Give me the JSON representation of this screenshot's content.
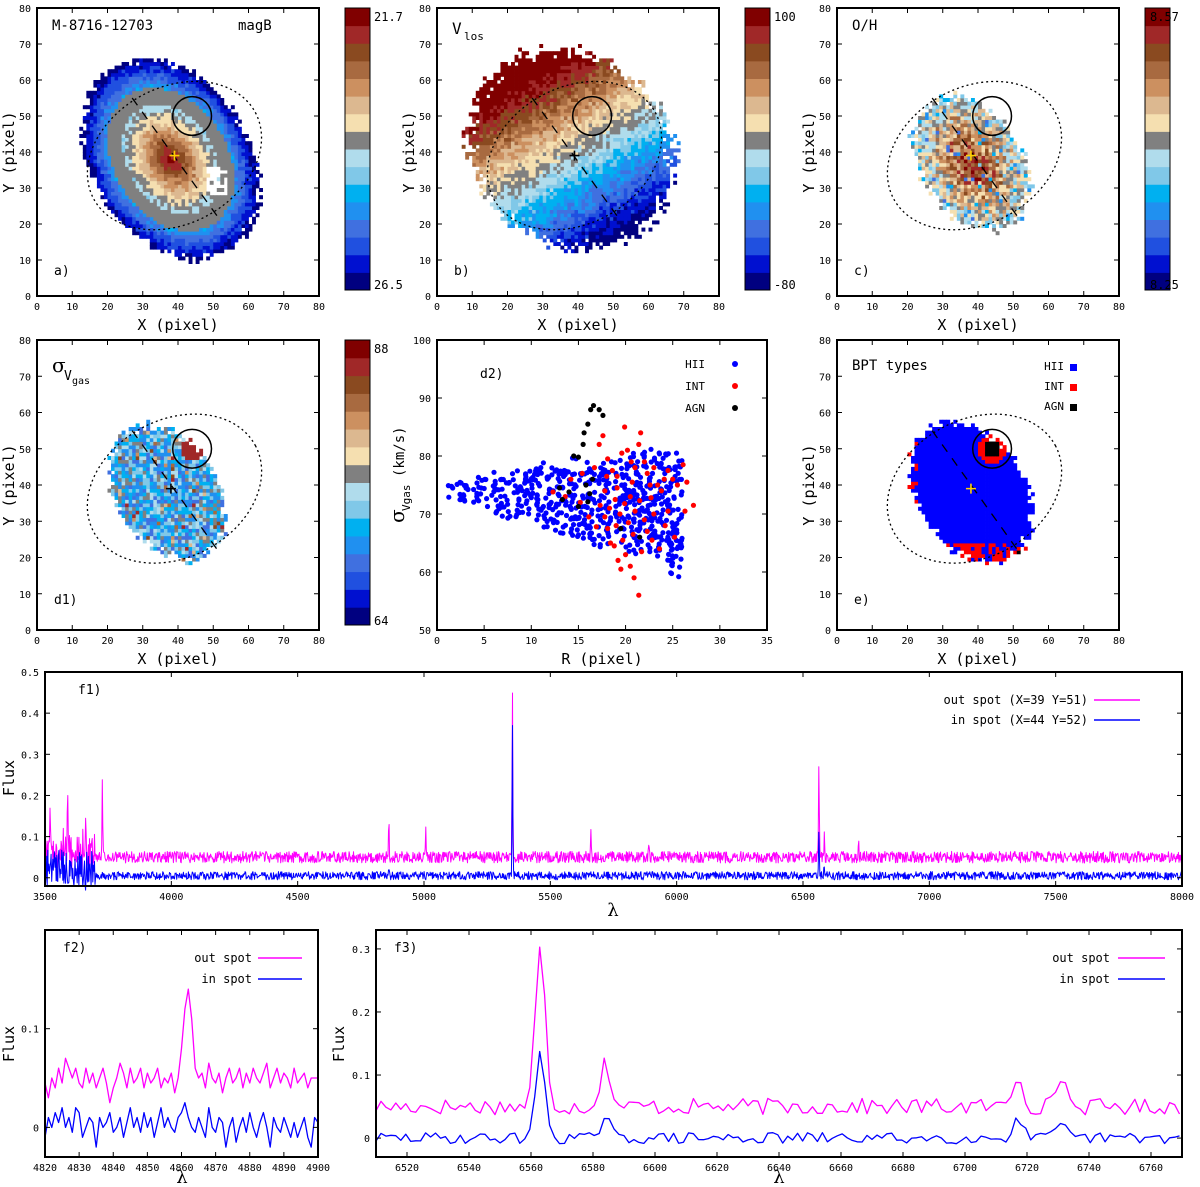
{
  "colors": {
    "palette": [
      "#000080",
      "#0010d0",
      "#2050e0",
      "#4070e0",
      "#2090f0",
      "#00b0f0",
      "#80c8e8",
      "#b0dcec",
      "#808080",
      "#f5dfb0",
      "#dcb890",
      "#cc9060",
      "#a86a40",
      "#8a4a20",
      "#a02828",
      "#800000"
    ],
    "hii": "#0000ff",
    "int": "#ff0000",
    "agn": "#000000",
    "out_spot": "#ff00ff",
    "in_spot": "#0000ff"
  },
  "maps": [
    {
      "id": "a",
      "title": "M-8716-12703",
      "subtitle": "magB",
      "tag": "a)",
      "cbar_top": "21.7",
      "cbar_bottom": "26.5",
      "xlabel": "X  (pixel)",
      "ylabel": "Y  (pixel)",
      "xticks": [
        "0",
        "10",
        "20",
        "30",
        "40",
        "50",
        "60",
        "70",
        "80"
      ],
      "yticks": [
        "0",
        "10",
        "20",
        "30",
        "40",
        "50",
        "60",
        "70",
        "80"
      ],
      "xlim": [
        0,
        80
      ],
      "ylim": [
        0,
        80
      ]
    },
    {
      "id": "b",
      "title": "V",
      "title_sub": "los",
      "tag": "b)",
      "cbar_top": "100",
      "cbar_bottom": "-80",
      "xlabel": "X  (pixel)",
      "ylabel": "Y  (pixel)",
      "xticks": [
        "0",
        "10",
        "20",
        "30",
        "40",
        "50",
        "60",
        "70",
        "80"
      ],
      "yticks": [
        "0",
        "10",
        "20",
        "30",
        "40",
        "50",
        "60",
        "70",
        "80"
      ],
      "xlim": [
        0,
        80
      ],
      "ylim": [
        0,
        80
      ]
    },
    {
      "id": "c",
      "title": "O/H",
      "tag": "c)",
      "cbar_top": "8.57",
      "cbar_bottom": "8.25",
      "xlabel": "X  (pixel)",
      "ylabel": "Y  (pixel)",
      "xticks": [
        "0",
        "10",
        "20",
        "30",
        "40",
        "50",
        "60",
        "70",
        "80"
      ],
      "yticks": [
        "0",
        "10",
        "20",
        "30",
        "40",
        "50",
        "60",
        "70",
        "80"
      ],
      "xlim": [
        0,
        80
      ],
      "ylim": [
        0,
        80
      ]
    },
    {
      "id": "d1",
      "title": "σ",
      "title_sub": "V",
      "title_subsub": "gas",
      "tag": "d1)",
      "cbar_top": "88",
      "cbar_bottom": "64",
      "xlabel": "X  (pixel)",
      "ylabel": "Y  (pixel)",
      "xticks": [
        "0",
        "10",
        "20",
        "30",
        "40",
        "50",
        "60",
        "70",
        "80"
      ],
      "yticks": [
        "0",
        "10",
        "20",
        "30",
        "40",
        "50",
        "60",
        "70",
        "80"
      ],
      "xlim": [
        0,
        80
      ],
      "ylim": [
        0,
        80
      ]
    },
    {
      "id": "e",
      "title": "BPT types",
      "tag": "e)",
      "xlabel": "X  (pixel)",
      "ylabel": "Y  (pixel)",
      "xticks": [
        "0",
        "10",
        "20",
        "30",
        "40",
        "50",
        "60",
        "70",
        "80"
      ],
      "yticks": [
        "0",
        "10",
        "20",
        "30",
        "40",
        "50",
        "60",
        "70",
        "80"
      ],
      "xlim": [
        0,
        80
      ],
      "ylim": [
        0,
        80
      ],
      "legend": [
        "HII",
        "INT",
        "AGN"
      ]
    }
  ],
  "chart_data": [
    {
      "id": "d2",
      "type": "scatter",
      "tag": "d2)",
      "xlabel": "R  (pixel)",
      "ylabel_sym": "σ",
      "ylabel_sub": "Vgas",
      "ylabel_unit": "(km/s)",
      "xlim": [
        0,
        35
      ],
      "ylim": [
        50,
        100
      ],
      "xticks": [
        "0",
        "5",
        "10",
        "15",
        "20",
        "25",
        "30",
        "35"
      ],
      "yticks": [
        "50",
        "60",
        "70",
        "80",
        "90",
        "100"
      ],
      "legend": [
        "HII",
        "INT",
        "AGN"
      ],
      "agn_points": [
        [
          14.5,
          80
        ],
        [
          15.0,
          79.8
        ],
        [
          15.5,
          82
        ],
        [
          15.6,
          84
        ],
        [
          16.0,
          85.5
        ],
        [
          16.3,
          88
        ],
        [
          16.6,
          88.7
        ],
        [
          17.2,
          88
        ],
        [
          17.6,
          87
        ],
        [
          15.8,
          75
        ],
        [
          16.2,
          73.5
        ],
        [
          16.5,
          76
        ],
        [
          14.0,
          73.8
        ],
        [
          13.3,
          72.5
        ],
        [
          13.0,
          74.5
        ],
        [
          21.5,
          66
        ],
        [
          19.5,
          67.5
        ],
        [
          15.0,
          71.3
        ],
        [
          16.0,
          72.1
        ]
      ],
      "int_points": [
        [
          12.3,
          73.8
        ],
        [
          13.6,
          73
        ],
        [
          14.2,
          76
        ],
        [
          15.2,
          72
        ],
        [
          16.1,
          69.5
        ],
        [
          16.7,
          78
        ],
        [
          17.2,
          82
        ],
        [
          17.6,
          83.5
        ],
        [
          18.1,
          79.5
        ],
        [
          18.6,
          77.5
        ],
        [
          19.1,
          76.5
        ],
        [
          19.6,
          80.5
        ],
        [
          19.9,
          85
        ],
        [
          20.2,
          81
        ],
        [
          20.6,
          79
        ],
        [
          21.0,
          78
        ],
        [
          21.4,
          82
        ],
        [
          21.6,
          84
        ],
        [
          22.0,
          79
        ],
        [
          22.3,
          77
        ],
        [
          22.6,
          75
        ],
        [
          23.0,
          78
        ],
        [
          23.4,
          75
        ],
        [
          23.8,
          74
        ],
        [
          24.1,
          76
        ],
        [
          24.5,
          77.5
        ],
        [
          25.0,
          76
        ],
        [
          25.5,
          75
        ],
        [
          26.1,
          78.5
        ],
        [
          26.5,
          75.5
        ],
        [
          27.2,
          71.5
        ],
        [
          26.3,
          70.5
        ],
        [
          25.2,
          66
        ],
        [
          24.2,
          68
        ],
        [
          23.6,
          64
        ],
        [
          22.8,
          65.5
        ],
        [
          22.3,
          67
        ],
        [
          21.4,
          56
        ],
        [
          20.9,
          59
        ],
        [
          20.5,
          61
        ],
        [
          20.0,
          63
        ],
        [
          19.5,
          60.5
        ],
        [
          19.2,
          62
        ],
        [
          18.8,
          64.5
        ],
        [
          18.4,
          65
        ],
        [
          18.1,
          67.5
        ],
        [
          17.8,
          69.5
        ],
        [
          18.3,
          71
        ],
        [
          18.9,
          72.5
        ],
        [
          19.4,
          70
        ],
        [
          19.9,
          71.8
        ],
        [
          20.5,
          73
        ],
        [
          21.0,
          70.5
        ],
        [
          21.5,
          72.3
        ],
        [
          22.0,
          69
        ],
        [
          16.9,
          67.8
        ],
        [
          17.3,
          71.5
        ],
        [
          17.8,
          74
        ],
        [
          19.1,
          74.5
        ],
        [
          20.7,
          75.5
        ],
        [
          23.0,
          70
        ],
        [
          24.5,
          70.5
        ],
        [
          20.8,
          66.5
        ],
        [
          21.7,
          63.5
        ],
        [
          19.7,
          65.5
        ],
        [
          18.0,
          76.5
        ],
        [
          15.4,
          77
        ],
        [
          20.3,
          68.5
        ],
        [
          22.7,
          72.8
        ],
        [
          19.0,
          68
        ]
      ]
    },
    {
      "id": "f1",
      "type": "line",
      "tag": "f1)",
      "xlabel": "λ",
      "ylabel": "Flux",
      "xlim": [
        3500,
        8000
      ],
      "ylim": [
        -0.02,
        0.5
      ],
      "xticks": [
        "3500",
        "4000",
        "4500",
        "5000",
        "5500",
        "6000",
        "6500",
        "7000",
        "7500",
        "8000"
      ],
      "yticks": [
        "0",
        "0.1",
        "0.2",
        "0.3",
        "0.4",
        "0.5"
      ],
      "series": [
        {
          "name": "out spot (X=39 Y=51)",
          "baseline": 0.05,
          "noise": 0.014
        },
        {
          "name": "in spot (X=44 Y=52)",
          "baseline": 0.005,
          "noise": 0.01
        }
      ],
      "out_peaks": [
        [
          3727,
          0.25
        ],
        [
          3660,
          0.12
        ],
        [
          3590,
          0.19
        ],
        [
          3520,
          0.18
        ],
        [
          4861,
          0.135
        ],
        [
          5007,
          0.12
        ],
        [
          5350,
          0.46
        ],
        [
          5660,
          0.12
        ],
        [
          5890,
          0.1
        ],
        [
          6563,
          0.3
        ],
        [
          6584,
          0.1
        ],
        [
          6720,
          0.1
        ]
      ],
      "in_peaks": [
        [
          5350,
          0.37
        ],
        [
          6563,
          0.13
        ],
        [
          4861,
          0.03
        ],
        [
          6584,
          0.03
        ]
      ]
    },
    {
      "id": "f2",
      "type": "line",
      "tag": "f2)",
      "xlabel": "λ",
      "ylabel": "Flux",
      "xlim": [
        4820,
        4900
      ],
      "ylim": [
        -0.03,
        0.2
      ],
      "xticks": [
        "4820",
        "4830",
        "4840",
        "4850",
        "4860",
        "4870",
        "4880",
        "4890",
        "4900"
      ],
      "yticks": [
        "0",
        "0.1"
      ],
      "series": [
        {
          "name": "out spot",
          "x": [
            4820,
            4821,
            4822,
            4823,
            4824,
            4825,
            4826,
            4827,
            4828,
            4829,
            4830,
            4831,
            4832,
            4833,
            4834,
            4835,
            4836,
            4837,
            4838,
            4839,
            4840,
            4841,
            4842,
            4843,
            4844,
            4845,
            4846,
            4847,
            4848,
            4849,
            4850,
            4851,
            4852,
            4853,
            4854,
            4855,
            4856,
            4857,
            4858,
            4859,
            4860,
            4861,
            4862,
            4863,
            4864,
            4865,
            4866,
            4867,
            4868,
            4869,
            4870,
            4871,
            4872,
            4873,
            4874,
            4875,
            4876,
            4877,
            4878,
            4879,
            4880,
            4881,
            4882,
            4883,
            4884,
            4885,
            4886,
            4887,
            4888,
            4889,
            4890,
            4891,
            4892,
            4893,
            4894,
            4895,
            4896,
            4897,
            4898,
            4899,
            4900
          ],
          "y": [
            0.045,
            0.03,
            0.05,
            0.04,
            0.06,
            0.045,
            0.07,
            0.06,
            0.05,
            0.06,
            0.045,
            0.04,
            0.06,
            0.045,
            0.055,
            0.04,
            0.05,
            0.06,
            0.045,
            0.025,
            0.04,
            0.05,
            0.065,
            0.055,
            0.04,
            0.06,
            0.045,
            0.05,
            0.06,
            0.04,
            0.055,
            0.045,
            0.05,
            0.06,
            0.04,
            0.05,
            0.045,
            0.055,
            0.035,
            0.05,
            0.08,
            0.12,
            0.14,
            0.11,
            0.06,
            0.05,
            0.055,
            0.04,
            0.065,
            0.05,
            0.045,
            0.055,
            0.035,
            0.05,
            0.06,
            0.045,
            0.05,
            0.06,
            0.04,
            0.055,
            0.045,
            0.06,
            0.05,
            0.045,
            0.055,
            0.065,
            0.04,
            0.05,
            0.06,
            0.045,
            0.055,
            0.05,
            0.04,
            0.06,
            0.045,
            0.05,
            0.055,
            0.04,
            0.05,
            0.05,
            0.05
          ]
        },
        {
          "name": "in spot",
          "x": [
            4820,
            4821,
            4822,
            4823,
            4824,
            4825,
            4826,
            4827,
            4828,
            4829,
            4830,
            4831,
            4832,
            4833,
            4834,
            4835,
            4836,
            4837,
            4838,
            4839,
            4840,
            4841,
            4842,
            4843,
            4844,
            4845,
            4846,
            4847,
            4848,
            4849,
            4850,
            4851,
            4852,
            4853,
            4854,
            4855,
            4856,
            4857,
            4858,
            4859,
            4860,
            4861,
            4862,
            4863,
            4864,
            4865,
            4866,
            4867,
            4868,
            4869,
            4870,
            4871,
            4872,
            4873,
            4874,
            4875,
            4876,
            4877,
            4878,
            4879,
            4880,
            4881,
            4882,
            4883,
            4884,
            4885,
            4886,
            4887,
            4888,
            4889,
            4890,
            4891,
            4892,
            4893,
            4894,
            4895,
            4896,
            4897,
            4898,
            4899,
            4900
          ],
          "y": [
            -0.01,
            0.01,
            0.0,
            0.015,
            0.005,
            0.02,
            0.0,
            0.01,
            -0.005,
            0.02,
            0.015,
            -0.01,
            0.0,
            0.01,
            0.005,
            -0.02,
            0.01,
            0.0,
            0.005,
            0.015,
            -0.005,
            0.0,
            0.01,
            -0.01,
            0.005,
            0.02,
            0.0,
            0.01,
            -0.005,
            0.015,
            0.0,
            0.01,
            -0.01,
            0.005,
            0.02,
            0.0,
            0.01,
            0.0,
            -0.005,
            0.01,
            0.015,
            0.025,
            0.01,
            0.0,
            -0.005,
            0.01,
            0.0,
            -0.01,
            0.02,
            0.0,
            -0.005,
            0.01,
            0.005,
            -0.02,
            0.0,
            0.01,
            -0.015,
            0.0,
            0.01,
            -0.005,
            0.015,
            0.0,
            -0.01,
            0.005,
            0.015,
            0.0,
            -0.02,
            0.01,
            0.0,
            -0.005,
            0.01,
            0.0,
            -0.01,
            0.005,
            -0.01,
            0.0,
            0.01,
            -0.01,
            -0.02,
            0.01,
            0.005
          ]
        }
      ]
    },
    {
      "id": "f3",
      "type": "line",
      "tag": "f3)",
      "xlabel": "λ",
      "ylabel": "Flux",
      "xlim": [
        6510,
        6770
      ],
      "ylim": [
        -0.03,
        0.33
      ],
      "xticks": [
        "6520",
        "6540",
        "6560",
        "6580",
        "6600",
        "6620",
        "6640",
        "6660",
        "6680",
        "6700",
        "6720",
        "6740",
        "6760"
      ],
      "yticks": [
        "0",
        "0.1",
        "0.2",
        "0.3"
      ],
      "series": [
        {
          "name": "out spot"
        },
        {
          "name": "in spot"
        }
      ],
      "out_peaks": [
        [
          6563,
          0.3
        ],
        [
          6584,
          0.12
        ],
        [
          6717,
          0.1
        ],
        [
          6731,
          0.1
        ]
      ],
      "in_peaks": [
        [
          6563,
          0.13
        ],
        [
          6584,
          0.03
        ],
        [
          6717,
          0.03
        ],
        [
          6731,
          0.02
        ]
      ]
    }
  ]
}
